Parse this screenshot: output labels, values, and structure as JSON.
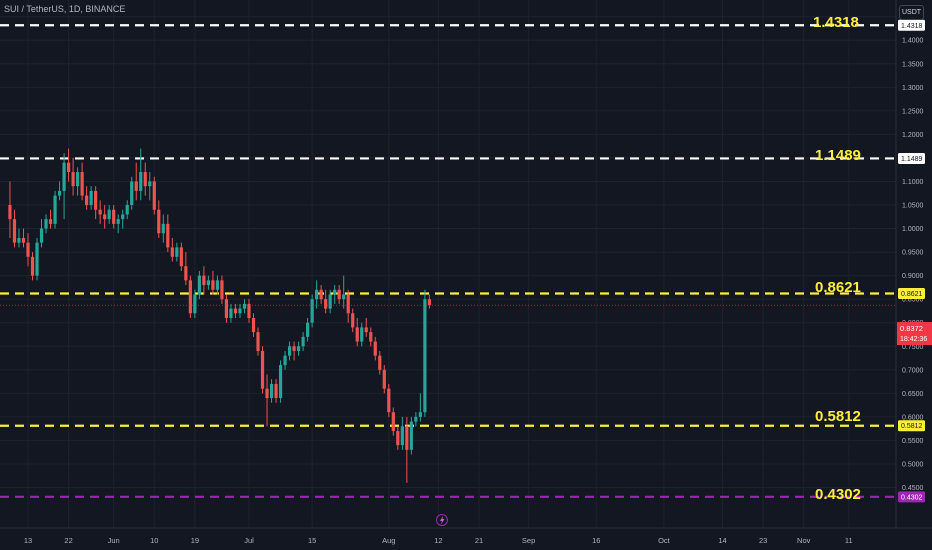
{
  "header": {
    "symbol_line": "SUI / TetherUS, 1D, BINANCE",
    "currency": "USDT"
  },
  "annotations": [
    {
      "text": "1.4318"
    },
    {
      "text": "1.1489"
    },
    {
      "text": "0.8621"
    },
    {
      "text": "0.5812"
    },
    {
      "text": "0.4302"
    }
  ],
  "colors": {
    "background": "#131722",
    "up": "#26a69a",
    "down": "#ef5350",
    "white_level": "#ffffff",
    "yellow_level": "#fdee3b",
    "purple_level": "#9c27b0",
    "current_price_bg": "#f23645"
  },
  "current_price": {
    "price": "0.8372",
    "countdown": "18:42:36"
  },
  "chart_data": {
    "type": "candlestick",
    "title": "SUI / TetherUS, 1D, BINANCE",
    "xlabel": "",
    "ylabel": "",
    "ylim": [
      0.39,
      1.485
    ],
    "y_ticks": [
      1.45,
      1.4,
      1.35,
      1.3,
      1.25,
      1.2,
      1.15,
      1.1,
      1.05,
      1.0,
      0.95,
      0.9,
      0.85,
      0.8,
      0.75,
      0.7,
      0.65,
      0.6,
      0.55,
      0.5,
      0.45
    ],
    "x_ticks": [
      {
        "label": "13",
        "date": "2024-05-13"
      },
      {
        "label": "22",
        "date": "2024-05-22"
      },
      {
        "label": "Jun",
        "date": "2024-06-01"
      },
      {
        "label": "10",
        "date": "2024-06-10"
      },
      {
        "label": "19",
        "date": "2024-06-19"
      },
      {
        "label": "Jul",
        "date": "2024-07-01"
      },
      {
        "label": "15",
        "date": "2024-07-15"
      },
      {
        "label": "Aug",
        "date": "2024-08-01"
      },
      {
        "label": "12",
        "date": "2024-08-12"
      },
      {
        "label": "21",
        "date": "2024-08-21"
      },
      {
        "label": "Sep",
        "date": "2024-09-01"
      },
      {
        "label": "16",
        "date": "2024-09-16"
      },
      {
        "label": "Oct",
        "date": "2024-10-01"
      },
      {
        "label": "14",
        "date": "2024-10-14"
      },
      {
        "label": "23",
        "date": "2024-10-23"
      },
      {
        "label": "Nov",
        "date": "2024-11-01"
      },
      {
        "label": "11",
        "date": "2024-11-11"
      }
    ],
    "horizontal_levels": [
      {
        "value": 1.4318,
        "label": "1.4318",
        "color": "#ffffff",
        "style": "dashed"
      },
      {
        "value": 1.1489,
        "label": "1.1489",
        "color": "#ffffff",
        "style": "dashed"
      },
      {
        "value": 0.8621,
        "label": "0.8621",
        "color": "#fdee3b",
        "style": "dashed"
      },
      {
        "value": 0.5812,
        "label": "0.5812",
        "color": "#fdee3b",
        "style": "dashed"
      },
      {
        "value": 0.4302,
        "label": "0.4302",
        "color": "#9c27b0",
        "style": "dashed"
      }
    ],
    "candles": [
      {
        "date": "2024-05-09",
        "open": 1.05,
        "high": 1.1,
        "low": 0.98,
        "close": 1.02
      },
      {
        "date": "2024-05-10",
        "open": 1.02,
        "high": 1.04,
        "low": 0.96,
        "close": 0.97
      },
      {
        "date": "2024-05-11",
        "open": 0.97,
        "high": 1.0,
        "low": 0.96,
        "close": 0.98
      },
      {
        "date": "2024-05-12",
        "open": 0.98,
        "high": 1.0,
        "low": 0.96,
        "close": 0.97
      },
      {
        "date": "2024-05-13",
        "open": 0.97,
        "high": 0.99,
        "low": 0.92,
        "close": 0.94
      },
      {
        "date": "2024-05-14",
        "open": 0.94,
        "high": 0.95,
        "low": 0.89,
        "close": 0.9
      },
      {
        "date": "2024-05-15",
        "open": 0.9,
        "high": 0.98,
        "low": 0.89,
        "close": 0.97
      },
      {
        "date": "2024-05-16",
        "open": 0.97,
        "high": 1.02,
        "low": 0.96,
        "close": 1.0
      },
      {
        "date": "2024-05-17",
        "open": 1.0,
        "high": 1.03,
        "low": 0.99,
        "close": 1.02
      },
      {
        "date": "2024-05-18",
        "open": 1.02,
        "high": 1.04,
        "low": 1.0,
        "close": 1.01
      },
      {
        "date": "2024-05-19",
        "open": 1.01,
        "high": 1.08,
        "low": 1.0,
        "close": 1.07
      },
      {
        "date": "2024-05-20",
        "open": 1.07,
        "high": 1.1,
        "low": 1.06,
        "close": 1.08
      },
      {
        "date": "2024-05-21",
        "open": 1.08,
        "high": 1.16,
        "low": 1.02,
        "close": 1.14
      },
      {
        "date": "2024-05-22",
        "open": 1.14,
        "high": 1.17,
        "low": 1.1,
        "close": 1.12
      },
      {
        "date": "2024-05-23",
        "open": 1.12,
        "high": 1.15,
        "low": 1.07,
        "close": 1.09
      },
      {
        "date": "2024-05-24",
        "open": 1.09,
        "high": 1.13,
        "low": 1.07,
        "close": 1.12
      },
      {
        "date": "2024-05-25",
        "open": 1.12,
        "high": 1.14,
        "low": 1.06,
        "close": 1.07
      },
      {
        "date": "2024-05-26",
        "open": 1.07,
        "high": 1.09,
        "low": 1.04,
        "close": 1.05
      },
      {
        "date": "2024-05-27",
        "open": 1.05,
        "high": 1.09,
        "low": 1.04,
        "close": 1.08
      },
      {
        "date": "2024-05-28",
        "open": 1.08,
        "high": 1.09,
        "low": 1.02,
        "close": 1.04
      },
      {
        "date": "2024-05-29",
        "open": 1.04,
        "high": 1.06,
        "low": 1.01,
        "close": 1.03
      },
      {
        "date": "2024-05-30",
        "open": 1.03,
        "high": 1.05,
        "low": 1.0,
        "close": 1.02
      },
      {
        "date": "2024-05-31",
        "open": 1.02,
        "high": 1.05,
        "low": 1.01,
        "close": 1.04
      },
      {
        "date": "2024-06-01",
        "open": 1.04,
        "high": 1.05,
        "low": 1.0,
        "close": 1.01
      },
      {
        "date": "2024-06-02",
        "open": 1.01,
        "high": 1.03,
        "low": 0.99,
        "close": 1.02
      },
      {
        "date": "2024-06-03",
        "open": 1.02,
        "high": 1.04,
        "low": 1.0,
        "close": 1.03
      },
      {
        "date": "2024-06-04",
        "open": 1.03,
        "high": 1.06,
        "low": 1.02,
        "close": 1.05
      },
      {
        "date": "2024-06-05",
        "open": 1.05,
        "high": 1.11,
        "low": 1.04,
        "close": 1.1
      },
      {
        "date": "2024-06-06",
        "open": 1.1,
        "high": 1.14,
        "low": 1.06,
        "close": 1.08
      },
      {
        "date": "2024-06-07",
        "open": 1.08,
        "high": 1.17,
        "low": 1.06,
        "close": 1.12
      },
      {
        "date": "2024-06-08",
        "open": 1.12,
        "high": 1.14,
        "low": 1.07,
        "close": 1.09
      },
      {
        "date": "2024-06-09",
        "open": 1.09,
        "high": 1.12,
        "low": 1.06,
        "close": 1.1
      },
      {
        "date": "2024-06-10",
        "open": 1.1,
        "high": 1.11,
        "low": 1.03,
        "close": 1.04
      },
      {
        "date": "2024-06-11",
        "open": 1.04,
        "high": 1.06,
        "low": 0.98,
        "close": 0.99
      },
      {
        "date": "2024-06-12",
        "open": 0.99,
        "high": 1.03,
        "low": 0.97,
        "close": 1.01
      },
      {
        "date": "2024-06-13",
        "open": 1.01,
        "high": 1.03,
        "low": 0.95,
        "close": 0.96
      },
      {
        "date": "2024-06-14",
        "open": 0.96,
        "high": 0.98,
        "low": 0.93,
        "close": 0.94
      },
      {
        "date": "2024-06-15",
        "open": 0.94,
        "high": 0.97,
        "low": 0.93,
        "close": 0.96
      },
      {
        "date": "2024-06-16",
        "open": 0.96,
        "high": 0.97,
        "low": 0.91,
        "close": 0.92
      },
      {
        "date": "2024-06-17",
        "open": 0.92,
        "high": 0.95,
        "low": 0.88,
        "close": 0.89
      },
      {
        "date": "2024-06-18",
        "open": 0.89,
        "high": 0.9,
        "low": 0.81,
        "close": 0.82
      },
      {
        "date": "2024-06-19",
        "open": 0.82,
        "high": 0.87,
        "low": 0.81,
        "close": 0.86
      },
      {
        "date": "2024-06-20",
        "open": 0.86,
        "high": 0.91,
        "low": 0.85,
        "close": 0.9
      },
      {
        "date": "2024-06-21",
        "open": 0.9,
        "high": 0.92,
        "low": 0.86,
        "close": 0.88
      },
      {
        "date": "2024-06-22",
        "open": 0.88,
        "high": 0.9,
        "low": 0.87,
        "close": 0.89
      },
      {
        "date": "2024-06-23",
        "open": 0.89,
        "high": 0.91,
        "low": 0.86,
        "close": 0.87
      },
      {
        "date": "2024-06-24",
        "open": 0.87,
        "high": 0.9,
        "low": 0.86,
        "close": 0.89
      },
      {
        "date": "2024-06-25",
        "open": 0.89,
        "high": 0.9,
        "low": 0.84,
        "close": 0.85
      },
      {
        "date": "2024-06-26",
        "open": 0.85,
        "high": 0.86,
        "low": 0.8,
        "close": 0.81
      },
      {
        "date": "2024-06-27",
        "open": 0.81,
        "high": 0.84,
        "low": 0.8,
        "close": 0.83
      },
      {
        "date": "2024-06-28",
        "open": 0.83,
        "high": 0.84,
        "low": 0.81,
        "close": 0.82
      },
      {
        "date": "2024-06-29",
        "open": 0.82,
        "high": 0.84,
        "low": 0.81,
        "close": 0.83
      },
      {
        "date": "2024-06-30",
        "open": 0.83,
        "high": 0.85,
        "low": 0.82,
        "close": 0.84
      },
      {
        "date": "2024-07-01",
        "open": 0.84,
        "high": 0.85,
        "low": 0.8,
        "close": 0.81
      },
      {
        "date": "2024-07-02",
        "open": 0.81,
        "high": 0.82,
        "low": 0.77,
        "close": 0.78
      },
      {
        "date": "2024-07-03",
        "open": 0.78,
        "high": 0.79,
        "low": 0.73,
        "close": 0.74
      },
      {
        "date": "2024-07-04",
        "open": 0.74,
        "high": 0.75,
        "low": 0.65,
        "close": 0.66
      },
      {
        "date": "2024-07-05",
        "open": 0.66,
        "high": 0.69,
        "low": 0.58,
        "close": 0.64
      },
      {
        "date": "2024-07-06",
        "open": 0.64,
        "high": 0.68,
        "low": 0.63,
        "close": 0.67
      },
      {
        "date": "2024-07-07",
        "open": 0.67,
        "high": 0.68,
        "low": 0.63,
        "close": 0.64
      },
      {
        "date": "2024-07-08",
        "open": 0.64,
        "high": 0.72,
        "low": 0.63,
        "close": 0.71
      },
      {
        "date": "2024-07-09",
        "open": 0.71,
        "high": 0.74,
        "low": 0.7,
        "close": 0.73
      },
      {
        "date": "2024-07-10",
        "open": 0.73,
        "high": 0.76,
        "low": 0.72,
        "close": 0.75
      },
      {
        "date": "2024-07-11",
        "open": 0.75,
        "high": 0.76,
        "low": 0.72,
        "close": 0.74
      },
      {
        "date": "2024-07-12",
        "open": 0.74,
        "high": 0.76,
        "low": 0.73,
        "close": 0.75
      },
      {
        "date": "2024-07-13",
        "open": 0.75,
        "high": 0.78,
        "low": 0.74,
        "close": 0.77
      },
      {
        "date": "2024-07-14",
        "open": 0.77,
        "high": 0.81,
        "low": 0.76,
        "close": 0.8
      },
      {
        "date": "2024-07-15",
        "open": 0.8,
        "high": 0.86,
        "low": 0.79,
        "close": 0.85
      },
      {
        "date": "2024-07-16",
        "open": 0.85,
        "high": 0.89,
        "low": 0.83,
        "close": 0.87
      },
      {
        "date": "2024-07-17",
        "open": 0.87,
        "high": 0.88,
        "low": 0.84,
        "close": 0.85
      },
      {
        "date": "2024-07-18",
        "open": 0.85,
        "high": 0.87,
        "low": 0.82,
        "close": 0.83
      },
      {
        "date": "2024-07-19",
        "open": 0.83,
        "high": 0.87,
        "low": 0.82,
        "close": 0.86
      },
      {
        "date": "2024-07-20",
        "open": 0.86,
        "high": 0.88,
        "low": 0.84,
        "close": 0.87
      },
      {
        "date": "2024-07-21",
        "open": 0.87,
        "high": 0.88,
        "low": 0.84,
        "close": 0.85
      },
      {
        "date": "2024-07-22",
        "open": 0.85,
        "high": 0.9,
        "low": 0.83,
        "close": 0.86
      },
      {
        "date": "2024-07-23",
        "open": 0.86,
        "high": 0.87,
        "low": 0.8,
        "close": 0.82
      },
      {
        "date": "2024-07-24",
        "open": 0.82,
        "high": 0.83,
        "low": 0.78,
        "close": 0.79
      },
      {
        "date": "2024-07-25",
        "open": 0.79,
        "high": 0.81,
        "low": 0.75,
        "close": 0.76
      },
      {
        "date": "2024-07-26",
        "open": 0.76,
        "high": 0.8,
        "low": 0.75,
        "close": 0.79
      },
      {
        "date": "2024-07-27",
        "open": 0.79,
        "high": 0.81,
        "low": 0.77,
        "close": 0.78
      },
      {
        "date": "2024-07-28",
        "open": 0.78,
        "high": 0.79,
        "low": 0.75,
        "close": 0.76
      },
      {
        "date": "2024-07-29",
        "open": 0.76,
        "high": 0.77,
        "low": 0.72,
        "close": 0.73
      },
      {
        "date": "2024-07-30",
        "open": 0.73,
        "high": 0.74,
        "low": 0.69,
        "close": 0.7
      },
      {
        "date": "2024-07-31",
        "open": 0.7,
        "high": 0.71,
        "low": 0.65,
        "close": 0.66
      },
      {
        "date": "2024-08-01",
        "open": 0.66,
        "high": 0.67,
        "low": 0.6,
        "close": 0.61
      },
      {
        "date": "2024-08-02",
        "open": 0.61,
        "high": 0.62,
        "low": 0.56,
        "close": 0.57
      },
      {
        "date": "2024-08-03",
        "open": 0.57,
        "high": 0.58,
        "low": 0.53,
        "close": 0.54
      },
      {
        "date": "2024-08-04",
        "open": 0.54,
        "high": 0.6,
        "low": 0.53,
        "close": 0.58
      },
      {
        "date": "2024-08-05",
        "open": 0.58,
        "high": 0.6,
        "low": 0.46,
        "close": 0.53
      },
      {
        "date": "2024-08-06",
        "open": 0.53,
        "high": 0.6,
        "low": 0.52,
        "close": 0.59
      },
      {
        "date": "2024-08-07",
        "open": 0.59,
        "high": 0.61,
        "low": 0.58,
        "close": 0.6
      },
      {
        "date": "2024-08-08",
        "open": 0.6,
        "high": 0.65,
        "low": 0.59,
        "close": 0.61
      },
      {
        "date": "2024-08-09",
        "open": 0.61,
        "high": 0.87,
        "low": 0.6,
        "close": 0.85
      },
      {
        "date": "2024-08-10",
        "open": 0.85,
        "high": 0.86,
        "low": 0.83,
        "close": 0.8372
      }
    ]
  }
}
